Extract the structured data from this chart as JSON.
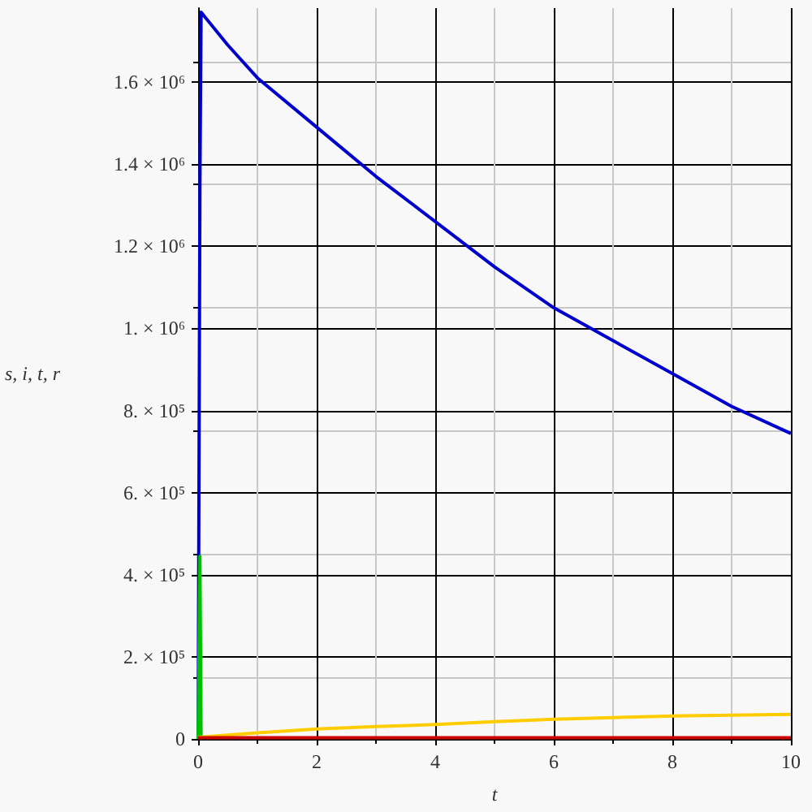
{
  "chart_data": {
    "type": "line",
    "xlabel": "t",
    "ylabel": "s, i, t, r",
    "series": [
      {
        "color": "#0000cc",
        "x": [
          0,
          0.03,
          0.05,
          0.5,
          1,
          2,
          3,
          4,
          5,
          6,
          7,
          8,
          9,
          10
        ],
        "values": [
          0,
          1340000,
          1770000,
          1690000,
          1610000,
          1490000,
          1370000,
          1260000,
          1150000,
          1050000,
          970000,
          890000,
          810000,
          744000
        ]
      },
      {
        "color": "#00c000",
        "x": [
          0,
          0.03,
          0.05,
          0.07
        ],
        "values": [
          0,
          445000,
          5000,
          0
        ]
      },
      {
        "color": "#ffcc00",
        "x": [
          0,
          1,
          2,
          3,
          4,
          5,
          6,
          7,
          8,
          9,
          10
        ],
        "values": [
          4000,
          15000,
          24000,
          30000,
          35000,
          42000,
          48000,
          52000,
          56000,
          58000,
          60000
        ]
      },
      {
        "color": "#cc0000",
        "x": [
          0,
          10
        ],
        "values": [
          3000,
          3000
        ]
      }
    ],
    "xlim": [
      0,
      10
    ],
    "ylim": [
      0,
      1780000
    ],
    "xticks": [
      0,
      2,
      4,
      6,
      8,
      10
    ],
    "yticks": [
      {
        "value": 0,
        "label": "0"
      },
      {
        "value": 200000,
        "label": "2. × 10⁵"
      },
      {
        "value": 400000,
        "label": "4. × 10⁵"
      },
      {
        "value": 600000,
        "label": "6. × 10⁵"
      },
      {
        "value": 800000,
        "label": "8. × 10⁵"
      },
      {
        "value": 1000000,
        "label": "1. × 10⁶"
      },
      {
        "value": 1200000,
        "label": "1.2 × 10⁶"
      },
      {
        "value": 1400000,
        "label": "1.4 × 10⁶"
      },
      {
        "value": 1600000,
        "label": "1.6 × 10⁶"
      }
    ],
    "grid": true,
    "marker": "none"
  }
}
